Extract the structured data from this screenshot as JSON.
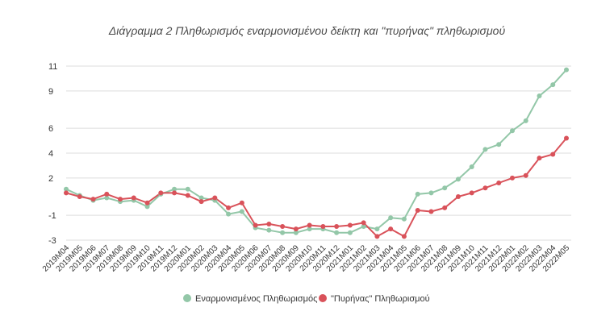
{
  "chart_data": {
    "type": "line",
    "title": "Διάγραμμα 2 Πληθωρισμός εναρμονισμένου δείκτη και \"πυρήνας\" πληθωρισμού",
    "xlabel": "",
    "ylabel": "",
    "ylim": [
      -3,
      11
    ],
    "y_ticks": [
      11,
      9,
      6,
      4,
      2,
      -1,
      -3
    ],
    "grid": true,
    "legend_position": "bottom",
    "categories": [
      "2019M04",
      "2019M05",
      "2019M06",
      "2019M07",
      "2019M08",
      "2019M09",
      "2019M10",
      "2019M11",
      "2019M12",
      "2020M01",
      "2020M02",
      "2020M03",
      "2020M04",
      "2020M05",
      "2020M06",
      "2020M07",
      "2020M08",
      "2020M09",
      "2020M10",
      "2020M11",
      "2020M12",
      "2021M01",
      "2021M02",
      "2021M03",
      "2021M04",
      "2021M05",
      "2021M06",
      "2021M07",
      "2021M08",
      "2021M09",
      "2021M10",
      "2021M11",
      "2021M12",
      "2022M01",
      "2022M02",
      "2022M03",
      "2022M04",
      "2022M05"
    ],
    "x_tick_labels": [
      "2019M04",
      "2019M05",
      "2019M06",
      "2019M07",
      "2019M08",
      "2019M09",
      "2019M10",
      "2019M11",
      "2019M12",
      "2020M01",
      "2020M02",
      "2020M03",
      "2020M04",
      "2020M05",
      "2020M06",
      "2020M07",
      "2020M08",
      "2020M09",
      "2020M10",
      "2020M11",
      "2020M12",
      "2021M01",
      "2021M02",
      "2021M03",
      "2021M04",
      "2021M05",
      "2021M06",
      "2021M07",
      "2021M08",
      "2021M09",
      "2021M10",
      "2021M11",
      "2021M12",
      "2022M01",
      "2022M02",
      "2022M03",
      "2022M04",
      "2022M05"
    ],
    "series": [
      {
        "name": "Εναρμονισμένος Πληθωρισμός",
        "color": "#93c7a8",
        "values": [
          1.1,
          0.6,
          0.2,
          0.4,
          0.1,
          0.2,
          -0.3,
          0.7,
          1.1,
          1.1,
          0.4,
          0.2,
          -0.9,
          -0.7,
          -2.0,
          -2.2,
          -2.4,
          -2.4,
          -2.1,
          -2.1,
          -2.4,
          -2.4,
          -1.9,
          -2.1,
          -1.2,
          -1.3,
          0.7,
          0.8,
          1.2,
          1.9,
          2.9,
          4.3,
          4.7,
          5.8,
          6.6,
          8.6,
          9.5,
          10.7
        ]
      },
      {
        "name": "\"Πυρήνας\" Πληθωρισμού",
        "color": "#d9525a",
        "values": [
          0.8,
          0.5,
          0.3,
          0.7,
          0.3,
          0.4,
          0.0,
          0.8,
          0.8,
          0.6,
          0.1,
          0.4,
          -0.4,
          0.0,
          -1.8,
          -1.7,
          -1.9,
          -2.1,
          -1.8,
          -1.9,
          -1.9,
          -1.8,
          -1.6,
          -2.7,
          -2.1,
          -2.7,
          -0.6,
          -0.7,
          -0.4,
          0.5,
          0.8,
          1.2,
          1.6,
          2.0,
          2.2,
          3.6,
          3.9,
          5.2
        ]
      }
    ]
  }
}
